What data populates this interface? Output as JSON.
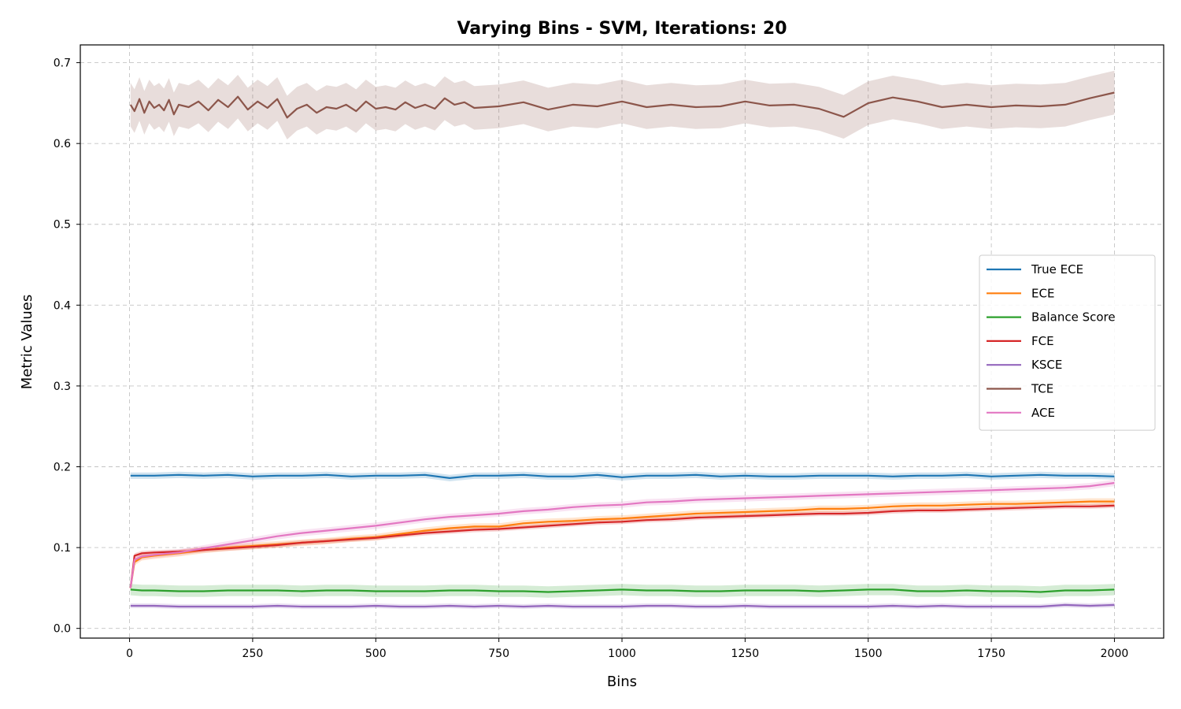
{
  "chart_data": {
    "type": "line",
    "title": "Varying Bins - SVM, Iterations: 20",
    "xlabel": "Bins",
    "ylabel": "Metric Values",
    "xlim": [
      -100,
      2100
    ],
    "ylim": [
      -0.012,
      0.722
    ],
    "xticks": [
      0,
      250,
      500,
      750,
      1000,
      1250,
      1500,
      1750,
      2000
    ],
    "yticks": [
      0.0,
      0.1,
      0.2,
      0.3,
      0.4,
      0.5,
      0.6,
      0.7
    ],
    "xtick_labels": [
      "0",
      "250",
      "500",
      "750",
      "1000",
      "1250",
      "1500",
      "1750",
      "2000"
    ],
    "ytick_labels": [
      "0.0",
      "0.1",
      "0.2",
      "0.3",
      "0.4",
      "0.5",
      "0.6",
      "0.7"
    ],
    "grid": true,
    "legend_position": "center-right",
    "series": [
      {
        "name": "True ECE",
        "color": "#1f77b4",
        "band": 0.004,
        "x": [
          2,
          50,
          100,
          150,
          200,
          250,
          300,
          350,
          400,
          450,
          500,
          550,
          600,
          650,
          700,
          750,
          800,
          850,
          900,
          950,
          1000,
          1050,
          1100,
          1150,
          1200,
          1250,
          1300,
          1350,
          1400,
          1450,
          1500,
          1550,
          1600,
          1650,
          1700,
          1750,
          1800,
          1850,
          1900,
          1950,
          2000
        ],
        "y": [
          0.189,
          0.189,
          0.19,
          0.189,
          0.19,
          0.188,
          0.189,
          0.189,
          0.19,
          0.188,
          0.189,
          0.189,
          0.19,
          0.186,
          0.189,
          0.189,
          0.19,
          0.188,
          0.188,
          0.19,
          0.187,
          0.189,
          0.189,
          0.19,
          0.188,
          0.189,
          0.188,
          0.188,
          0.189,
          0.189,
          0.189,
          0.188,
          0.189,
          0.189,
          0.19,
          0.188,
          0.189,
          0.19,
          0.189,
          0.189,
          0.188
        ]
      },
      {
        "name": "ECE",
        "color": "#ff7f0e",
        "band": 0.004,
        "x": [
          2,
          10,
          25,
          50,
          100,
          150,
          200,
          250,
          300,
          350,
          400,
          450,
          500,
          550,
          600,
          650,
          700,
          750,
          800,
          850,
          900,
          950,
          1000,
          1050,
          1100,
          1150,
          1200,
          1250,
          1300,
          1350,
          1400,
          1450,
          1500,
          1550,
          1600,
          1650,
          1700,
          1750,
          1800,
          1850,
          1900,
          1950,
          2000
        ],
        "y": [
          0.05,
          0.082,
          0.088,
          0.09,
          0.093,
          0.097,
          0.1,
          0.102,
          0.104,
          0.106,
          0.108,
          0.111,
          0.113,
          0.117,
          0.121,
          0.124,
          0.126,
          0.126,
          0.13,
          0.132,
          0.133,
          0.135,
          0.136,
          0.138,
          0.14,
          0.142,
          0.143,
          0.144,
          0.145,
          0.146,
          0.148,
          0.148,
          0.149,
          0.151,
          0.152,
          0.152,
          0.153,
          0.154,
          0.154,
          0.155,
          0.156,
          0.157,
          0.157
        ]
      },
      {
        "name": "Balance Score",
        "color": "#2ca02c",
        "band": 0.007,
        "x": [
          2,
          25,
          50,
          100,
          150,
          200,
          250,
          300,
          350,
          400,
          450,
          500,
          550,
          600,
          650,
          700,
          750,
          800,
          850,
          900,
          950,
          1000,
          1050,
          1100,
          1150,
          1200,
          1250,
          1300,
          1350,
          1400,
          1450,
          1500,
          1550,
          1600,
          1650,
          1700,
          1750,
          1800,
          1850,
          1900,
          1950,
          2000
        ],
        "y": [
          0.048,
          0.047,
          0.047,
          0.046,
          0.046,
          0.047,
          0.047,
          0.047,
          0.046,
          0.047,
          0.047,
          0.046,
          0.046,
          0.046,
          0.047,
          0.047,
          0.046,
          0.046,
          0.045,
          0.046,
          0.047,
          0.048,
          0.047,
          0.047,
          0.046,
          0.046,
          0.047,
          0.047,
          0.047,
          0.046,
          0.047,
          0.048,
          0.048,
          0.046,
          0.046,
          0.047,
          0.046,
          0.046,
          0.045,
          0.047,
          0.047,
          0.048
        ]
      },
      {
        "name": "FCE",
        "color": "#d62728",
        "band": 0.003,
        "x": [
          2,
          10,
          25,
          50,
          100,
          150,
          200,
          250,
          300,
          350,
          400,
          450,
          500,
          550,
          600,
          650,
          700,
          750,
          800,
          850,
          900,
          950,
          1000,
          1050,
          1100,
          1150,
          1200,
          1250,
          1300,
          1350,
          1400,
          1450,
          1500,
          1550,
          1600,
          1650,
          1700,
          1750,
          1800,
          1850,
          1900,
          1950,
          2000
        ],
        "y": [
          0.05,
          0.09,
          0.093,
          0.094,
          0.095,
          0.097,
          0.099,
          0.101,
          0.103,
          0.106,
          0.108,
          0.11,
          0.112,
          0.115,
          0.118,
          0.12,
          0.122,
          0.123,
          0.125,
          0.127,
          0.129,
          0.131,
          0.132,
          0.134,
          0.135,
          0.137,
          0.138,
          0.139,
          0.14,
          0.141,
          0.142,
          0.142,
          0.143,
          0.145,
          0.146,
          0.146,
          0.147,
          0.148,
          0.149,
          0.15,
          0.151,
          0.151,
          0.152
        ]
      },
      {
        "name": "KSCE",
        "color": "#9467bd",
        "band": 0.003,
        "x": [
          2,
          50,
          100,
          150,
          200,
          250,
          300,
          350,
          400,
          450,
          500,
          550,
          600,
          650,
          700,
          750,
          800,
          850,
          900,
          950,
          1000,
          1050,
          1100,
          1150,
          1200,
          1250,
          1300,
          1350,
          1400,
          1450,
          1500,
          1550,
          1600,
          1650,
          1700,
          1750,
          1800,
          1850,
          1900,
          1950,
          2000
        ],
        "y": [
          0.028,
          0.028,
          0.027,
          0.027,
          0.027,
          0.027,
          0.028,
          0.027,
          0.027,
          0.027,
          0.028,
          0.027,
          0.027,
          0.028,
          0.027,
          0.028,
          0.027,
          0.028,
          0.027,
          0.027,
          0.027,
          0.028,
          0.028,
          0.027,
          0.027,
          0.028,
          0.027,
          0.027,
          0.027,
          0.027,
          0.027,
          0.028,
          0.027,
          0.028,
          0.027,
          0.027,
          0.027,
          0.027,
          0.029,
          0.028,
          0.029
        ]
      },
      {
        "name": "TCE",
        "color": "#8c564b",
        "band": 0.027,
        "x": [
          2,
          10,
          20,
          30,
          40,
          50,
          60,
          70,
          80,
          90,
          100,
          120,
          140,
          160,
          180,
          200,
          220,
          240,
          260,
          280,
          300,
          320,
          340,
          360,
          380,
          400,
          420,
          440,
          460,
          480,
          500,
          520,
          540,
          560,
          580,
          600,
          620,
          640,
          660,
          680,
          700,
          750,
          800,
          850,
          900,
          950,
          1000,
          1050,
          1100,
          1150,
          1200,
          1250,
          1300,
          1350,
          1400,
          1450,
          1500,
          1550,
          1600,
          1650,
          1700,
          1750,
          1800,
          1850,
          1900,
          1950,
          2000
        ],
        "y": [
          0.648,
          0.64,
          0.655,
          0.638,
          0.652,
          0.644,
          0.648,
          0.641,
          0.654,
          0.636,
          0.648,
          0.645,
          0.652,
          0.641,
          0.654,
          0.645,
          0.658,
          0.642,
          0.652,
          0.644,
          0.655,
          0.632,
          0.643,
          0.648,
          0.638,
          0.645,
          0.643,
          0.648,
          0.64,
          0.652,
          0.643,
          0.645,
          0.642,
          0.651,
          0.644,
          0.648,
          0.643,
          0.656,
          0.648,
          0.651,
          0.644,
          0.646,
          0.651,
          0.642,
          0.648,
          0.646,
          0.652,
          0.645,
          0.648,
          0.645,
          0.646,
          0.652,
          0.647,
          0.648,
          0.643,
          0.633,
          0.65,
          0.657,
          0.652,
          0.645,
          0.648,
          0.645,
          0.647,
          0.646,
          0.648,
          0.656,
          0.663
        ]
      },
      {
        "name": "ACE",
        "color": "#e377c2",
        "band": 0.004,
        "x": [
          2,
          10,
          25,
          50,
          100,
          150,
          200,
          250,
          300,
          350,
          400,
          450,
          500,
          550,
          600,
          650,
          700,
          750,
          800,
          850,
          900,
          950,
          1000,
          1050,
          1100,
          1150,
          1200,
          1250,
          1300,
          1350,
          1400,
          1450,
          1500,
          1550,
          1600,
          1650,
          1700,
          1750,
          1800,
          1850,
          1900,
          1950,
          2000
        ],
        "y": [
          0.05,
          0.085,
          0.089,
          0.091,
          0.094,
          0.099,
          0.104,
          0.109,
          0.114,
          0.118,
          0.121,
          0.124,
          0.127,
          0.131,
          0.135,
          0.138,
          0.14,
          0.142,
          0.145,
          0.147,
          0.15,
          0.152,
          0.153,
          0.156,
          0.157,
          0.159,
          0.16,
          0.161,
          0.162,
          0.163,
          0.164,
          0.165,
          0.166,
          0.167,
          0.168,
          0.169,
          0.17,
          0.171,
          0.172,
          0.173,
          0.174,
          0.176,
          0.18
        ]
      }
    ]
  }
}
